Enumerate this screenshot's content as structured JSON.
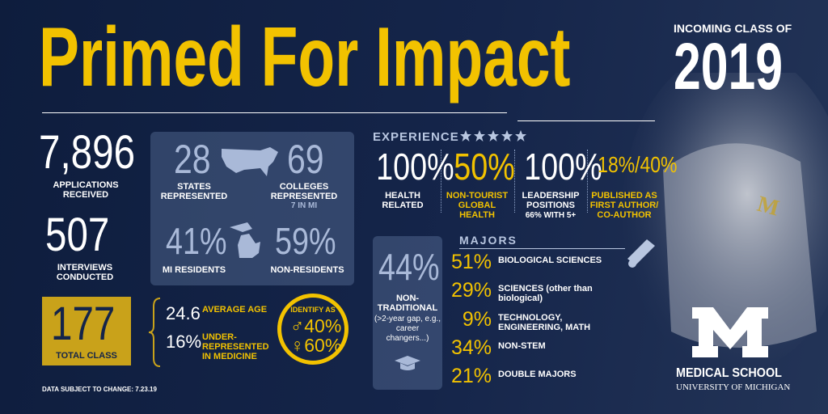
{
  "header": {
    "title": "Primed For Impact",
    "kicker": "INCOMING CLASS OF",
    "year": "2019"
  },
  "stats": {
    "applications": {
      "value": "7,896",
      "label": "APPLICATIONS RECEIVED"
    },
    "interviews": {
      "value": "507",
      "label": "INTERVIEWS CONDUCTED"
    },
    "total": {
      "value": "177",
      "label": "TOTAL CLASS"
    }
  },
  "geography": {
    "states": {
      "value": "28",
      "label": "STATES REPRESENTED"
    },
    "colleges": {
      "value": "69",
      "label": "COLLEGES REPRESENTED",
      "note": "7 IN MI"
    },
    "residents": {
      "value": "41%",
      "label": "MI RESIDENTS"
    },
    "non_residents": {
      "value": "59%",
      "label": "NON-RESIDENTS"
    }
  },
  "demographics": {
    "age": {
      "value": "24.6",
      "label": "AVERAGE AGE"
    },
    "urm": {
      "value": "16%",
      "label": "UNDER-REPRESENTED IN MEDICINE"
    },
    "gender": {
      "title": "IDENTIFY AS",
      "male": "♂40%",
      "female": "♀60%"
    }
  },
  "footnote": "DATA SUBJECT TO CHANGE: 7.23.19",
  "experience": {
    "title": "EXPERIENCE",
    "items": [
      {
        "value": "100%",
        "label": "HEALTH RELATED"
      },
      {
        "value": "50%",
        "label": "NON-TOURIST GLOBAL HEALTH"
      },
      {
        "value": "100%",
        "label": "LEADERSHIP POSITIONS",
        "note": "66% WITH 5+"
      },
      {
        "value": "18%/40%",
        "label": "PUBLISHED AS FIRST AUTHOR/ CO-AUTHOR"
      }
    ]
  },
  "non_traditional": {
    "value": "44%",
    "label": "NON-TRADITIONAL",
    "note": "(>2-year gap, e.g., career changers...)"
  },
  "majors": {
    "title": "MAJORS",
    "items": [
      {
        "value": "51%",
        "label": "BIOLOGICAL SCIENCES"
      },
      {
        "value": "29%",
        "label": "SCIENCES (other than biological)"
      },
      {
        "value": "9%",
        "label": "TECHNOLOGY, ENGINEERING, MATH"
      },
      {
        "value": "34%",
        "label": "NON-STEM"
      },
      {
        "value": "21%",
        "label": "DOUBLE MAJORS"
      }
    ]
  },
  "logo": {
    "name": "MEDICAL SCHOOL",
    "university": "UNIVERSITY OF MICHIGAN"
  }
}
